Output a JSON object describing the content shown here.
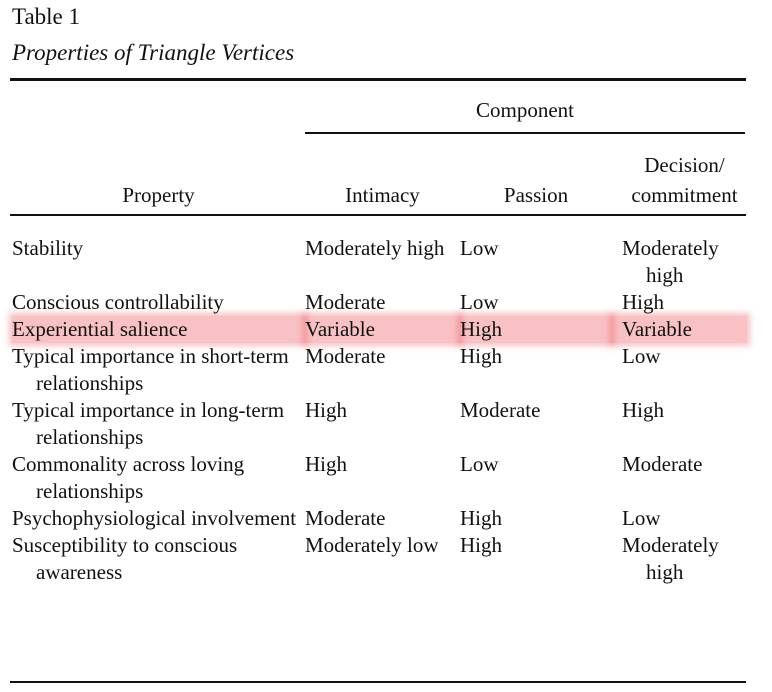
{
  "title": "Table 1",
  "subtitle": "Properties of Triangle Vertices",
  "spanner": "Component",
  "columns": [
    "Property",
    "Intimacy",
    "Passion",
    "Decision/ commitment"
  ],
  "rows": [
    [
      "Stability",
      "Moderately high",
      "Low",
      "Moderately high"
    ],
    [
      "Conscious controllability",
      "Moderate",
      "Low",
      "High"
    ],
    [
      "Experiential salience",
      "Variable",
      "High",
      "Variable"
    ],
    [
      "Typical importance in short-term relationships",
      "Moderate",
      "High",
      "Low"
    ],
    [
      "Typical importance in long-term relationships",
      "High",
      "Moderate",
      "High"
    ],
    [
      "Commonality across loving relationships",
      "High",
      "Low",
      "Moderate"
    ],
    [
      "Psychophysiological involvement",
      "Moderate",
      "High",
      "Low"
    ],
    [
      "Susceptibility to conscious awareness",
      "Moderately low",
      "High",
      "Moderately high"
    ]
  ]
}
